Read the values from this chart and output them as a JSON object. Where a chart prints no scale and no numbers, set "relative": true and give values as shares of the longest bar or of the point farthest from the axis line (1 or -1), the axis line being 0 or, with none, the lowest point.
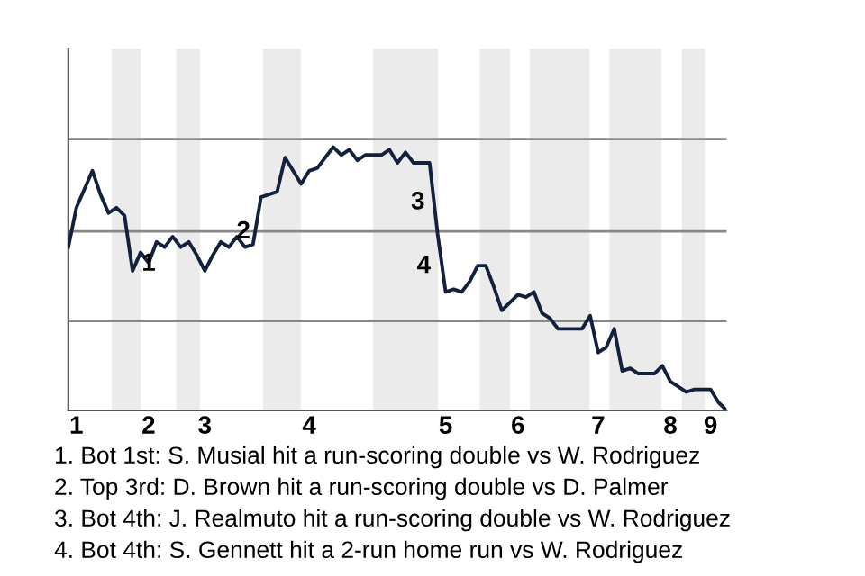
{
  "chart_data": {
    "type": "line",
    "relative": true,
    "color": "#14213d",
    "marker": "none",
    "line_style": "solid",
    "categories": [
      null,
      "1",
      null,
      null,
      null,
      null,
      null,
      null,
      null,
      null,
      "2",
      null,
      null,
      null,
      null,
      null,
      null,
      "3",
      null,
      null,
      null,
      null,
      null,
      null,
      null,
      null,
      null,
      null,
      null,
      null,
      "4",
      null,
      null,
      null,
      null,
      null,
      null,
      null,
      null,
      null,
      null,
      null,
      null,
      null,
      null,
      null,
      null,
      "5",
      null,
      null,
      null,
      null,
      null,
      null,
      null,
      null,
      "6",
      null,
      null,
      null,
      null,
      null,
      null,
      null,
      null,
      null,
      "7",
      null,
      null,
      null,
      null,
      null,
      null,
      null,
      null,
      "8",
      null,
      null,
      null,
      null,
      "9",
      null,
      null
    ],
    "values": [
      0.62,
      0.77,
      0.84,
      0.91,
      0.82,
      0.75,
      0.77,
      0.74,
      0.53,
      0.6,
      0.56,
      0.64,
      0.62,
      0.66,
      0.62,
      0.64,
      0.59,
      0.53,
      0.59,
      0.64,
      0.62,
      0.66,
      0.62,
      0.63,
      0.81,
      0.82,
      0.83,
      0.96,
      0.91,
      0.86,
      0.91,
      0.92,
      0.96,
      1.0,
      0.97,
      0.99,
      0.95,
      0.97,
      0.97,
      0.97,
      0.99,
      0.94,
      0.98,
      0.94,
      0.94,
      0.94,
      0.67,
      0.45,
      0.46,
      0.45,
      0.49,
      0.55,
      0.55,
      0.47,
      0.38,
      0.41,
      0.44,
      0.43,
      0.45,
      0.37,
      0.35,
      0.31,
      0.31,
      0.31,
      0.31,
      0.36,
      0.22,
      0.24,
      0.31,
      0.15,
      0.16,
      0.14,
      0.14,
      0.14,
      0.17,
      0.11,
      0.09,
      0.07,
      0.08,
      0.08,
      0.08,
      0.03,
      0
    ],
    "tick_labels": "x",
    "grid": false,
    "legend": false,
    "ref_lines": [
      {
        "axis": "y",
        "value": 0.34,
        "color": "#888888",
        "line_style": "solid"
      },
      {
        "axis": "y",
        "value": 0.68,
        "color": "#888888",
        "line_style": "solid"
      },
      {
        "axis": "y",
        "value": 1.03,
        "color": "#888888",
        "line_style": "solid"
      }
    ],
    "annotations": [
      "1",
      "2",
      "3",
      "4",
      "1. Bot 1st: S. Musial hit a run-scoring double vs W. Rodriguez",
      "2. Top 3rd: D. Brown hit a run-scoring double vs D. Palmer",
      "3. Bot 4th: J. Realmuto hit a run-scoring double vs W. Rodriguez",
      "4. Bot 4th: S. Gennett hit a 2-run home run vs W. Rodriguez"
    ]
  }
}
